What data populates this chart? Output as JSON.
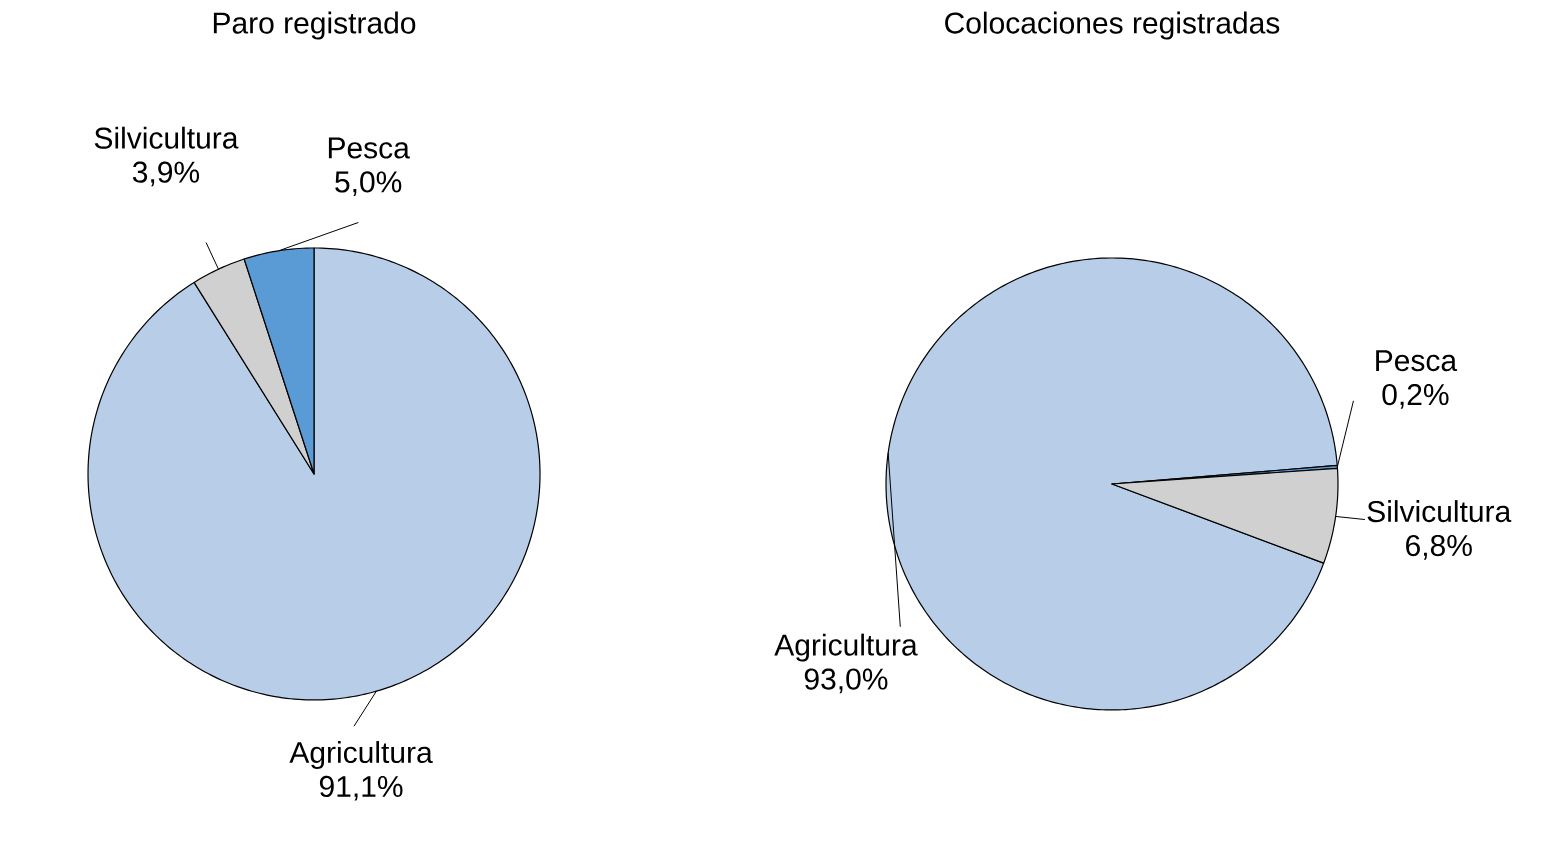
{
  "chart_data": [
    {
      "type": "pie",
      "title": "Paro registrado",
      "categories": [
        "Agricultura",
        "Silvicultura",
        "Pesca"
      ],
      "values": [
        91.1,
        3.9,
        5.0
      ],
      "colors": [
        "#b7cde8",
        "#d0d0d0",
        "#5b9bd5"
      ],
      "value_labels": [
        "91,1%",
        "3,9%",
        "5,0%"
      ]
    },
    {
      "type": "pie",
      "title": "Colocaciones registradas",
      "categories": [
        "Agricultura",
        "Pesca",
        "Silvicultura"
      ],
      "values": [
        93.0,
        0.2,
        6.8
      ],
      "colors": [
        "#b7cde8",
        "#5b9bd5",
        "#d0d0d0"
      ],
      "value_labels": [
        "93,0%",
        "0,2%",
        "6,8%"
      ]
    }
  ]
}
